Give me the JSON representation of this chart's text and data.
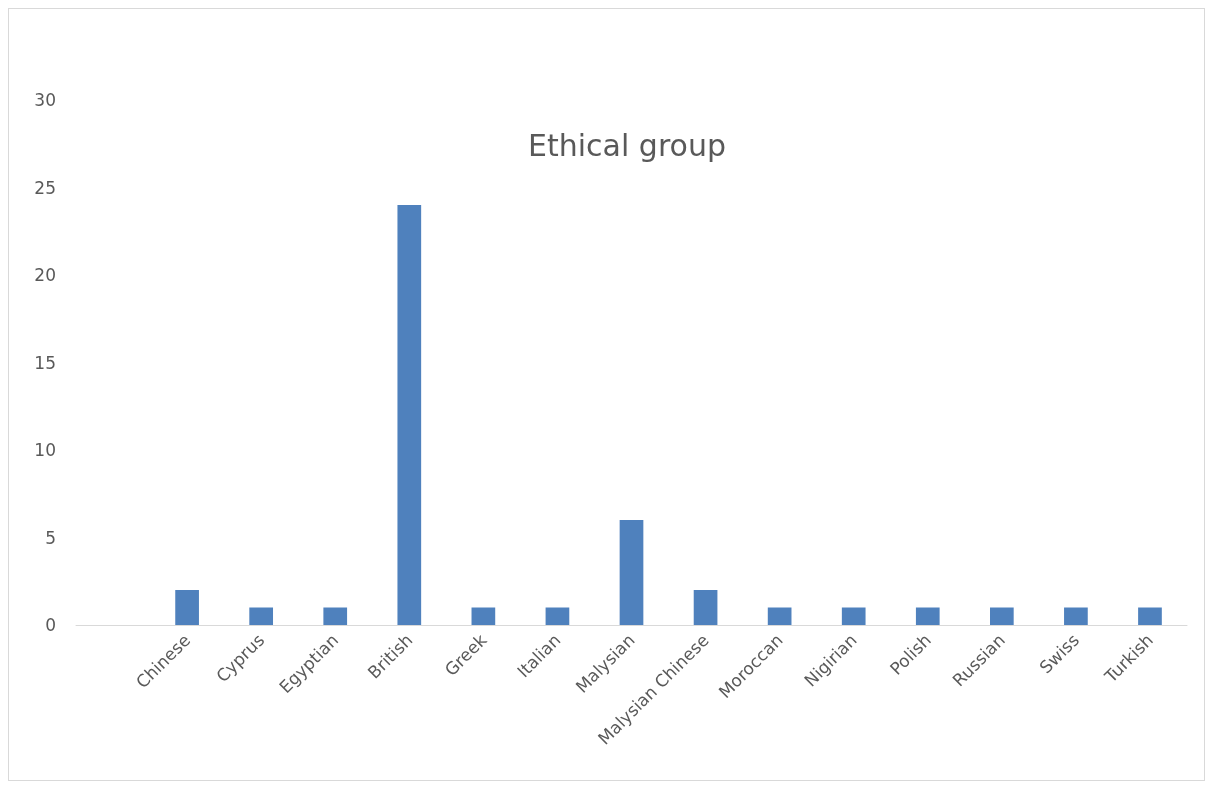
{
  "chart_data": {
    "type": "bar",
    "title": "Ethical group",
    "categories": [
      null,
      "Chinese",
      "Cyprus",
      "Egyptian",
      "British",
      "Greek",
      "Italian",
      "Malysian",
      "Malysian Chinese",
      "Moroccan",
      "Nigirian",
      "Polish",
      "Russian",
      "Swiss",
      "Turkish"
    ],
    "values": [
      null,
      2,
      1,
      1,
      24,
      1,
      1,
      6,
      2,
      1,
      1,
      1,
      1,
      1,
      1
    ],
    "color": "#4f81bd",
    "ylim": [
      0,
      30
    ],
    "yticks": [
      0,
      5,
      10,
      15,
      20,
      25,
      30
    ],
    "grid": false
  }
}
